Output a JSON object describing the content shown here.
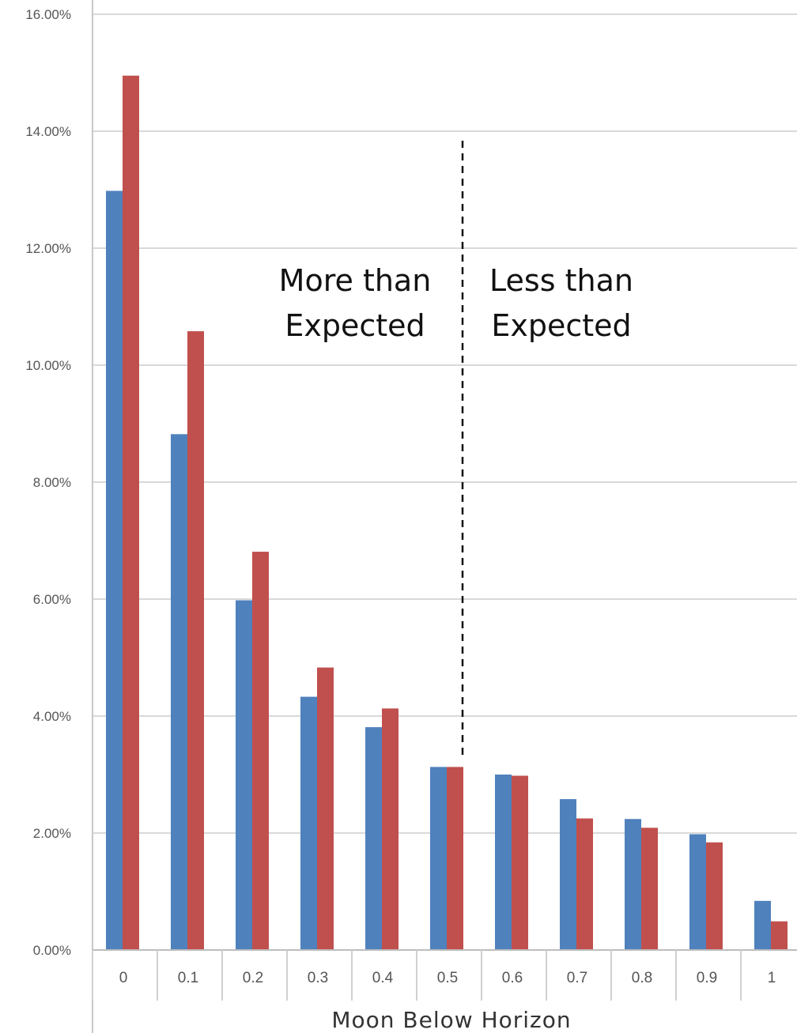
{
  "chart_data": {
    "type": "bar",
    "categories": [
      "0",
      "0.1",
      "0.2",
      "0.3",
      "0.4",
      "0.5",
      "0.6",
      "0.7",
      "0.8",
      "0.9",
      "1"
    ],
    "series": [
      {
        "color": "#4F81BD",
        "values": [
          12.98,
          8.82,
          5.98,
          4.33,
          3.81,
          3.13,
          3.0,
          2.58,
          2.24,
          1.98,
          0.84
        ]
      },
      {
        "color": "#C0504D",
        "values": [
          14.95,
          10.58,
          6.81,
          4.83,
          4.13,
          3.13,
          2.98,
          2.25,
          2.09,
          1.84,
          0.49
        ]
      }
    ],
    "xlabel": "Moon Below Horizon",
    "ylabel": "",
    "ylim": [
      0,
      16
    ],
    "yticks": [
      0,
      2,
      4,
      6,
      8,
      10,
      12,
      14,
      16
    ],
    "ytick_labels": [
      "0.00%",
      "2.00%",
      "4.00%",
      "6.00%",
      "8.00%",
      "10.00%",
      "12.00%",
      "14.00%",
      "16.00%"
    ],
    "grid": true,
    "divider_between": [
      "0.5",
      "0.6"
    ],
    "annotations": {
      "left_line1": "More than",
      "left_line2": "Expected",
      "right_line1": "Less than",
      "right_line2": "Expected"
    }
  }
}
